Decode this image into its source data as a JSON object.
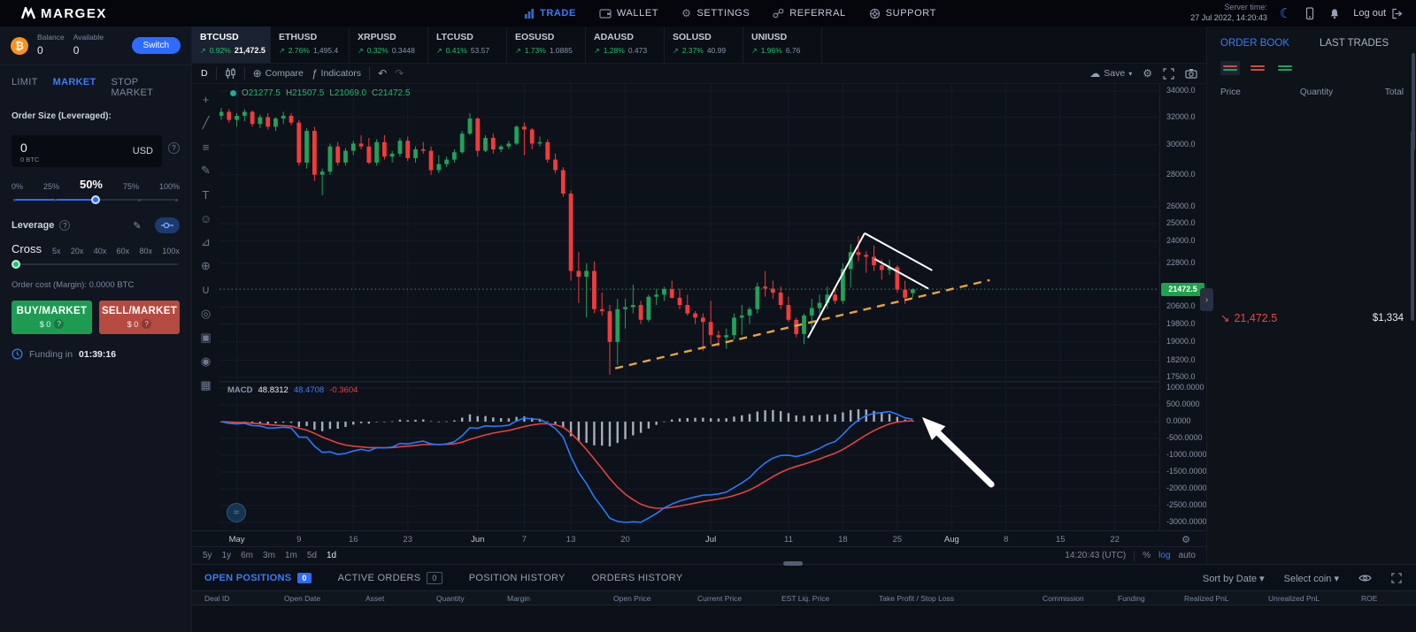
{
  "nav": {
    "brand": "MARGEX",
    "items": [
      {
        "label": "TRADE",
        "active": true
      },
      {
        "label": "WALLET"
      },
      {
        "label": "SETTINGS"
      },
      {
        "label": "REFERRAL"
      },
      {
        "label": "SUPPORT"
      }
    ],
    "server_time_label": "Server time:",
    "server_time": "27 Jul 2022, 14:20:43",
    "logout": "Log out"
  },
  "account": {
    "balance_label": "Balance",
    "balance": "0",
    "available_label": "Available",
    "available": "0",
    "switch_label": "Switch"
  },
  "order_form": {
    "tabs": [
      "LIMIT",
      "MARKET",
      "STOP MARKET"
    ],
    "active_tab": "MARKET",
    "size_label": "Order Size (Leveraged):",
    "size_value": "0",
    "size_btc": "0 BTC",
    "currency": "USD",
    "slider_labels": [
      "0%",
      "25%",
      "50%",
      "75%",
      "100%"
    ],
    "slider_value": "50%",
    "leverage_label": "Leverage",
    "margin_mode": "Cross",
    "leverage_options": [
      "5x",
      "20x",
      "40x",
      "60x",
      "80x",
      "100x"
    ],
    "order_cost": "Order cost (Margin): 0.0000 BTC",
    "buy_label": "BUY/MARKET",
    "buy_amount": "$ 0",
    "sell_label": "SELL/MARKET",
    "sell_amount": "$ 0",
    "funding_label": "Funding in",
    "funding_time": "01:39:16"
  },
  "tickers": [
    {
      "symbol": "BTCUSD",
      "change": "0.92%",
      "price": "21,472.5",
      "active": true
    },
    {
      "symbol": "ETHUSD",
      "change": "2.76%",
      "price": "1,495.4"
    },
    {
      "symbol": "XRPUSD",
      "change": "0.32%",
      "price": "0.3448"
    },
    {
      "symbol": "LTCUSD",
      "change": "0.41%",
      "price": "53.57"
    },
    {
      "symbol": "EOSUSD",
      "change": "1.73%",
      "price": "1.0885"
    },
    {
      "symbol": "ADAUSD",
      "change": "1.28%",
      "price": "0.473"
    },
    {
      "symbol": "SOLUSD",
      "change": "2.37%",
      "price": "40.99"
    },
    {
      "symbol": "UNIUSD",
      "change": "1.96%",
      "price": "6.76"
    }
  ],
  "chart": {
    "toolbar": {
      "interval": "D",
      "compare": "Compare",
      "indicators": "Indicators",
      "save": "Save"
    },
    "legend": {
      "o_label": "O",
      "o": "21277.5",
      "h_label": "H",
      "h": "21507.5",
      "l_label": "L",
      "l": "21069.0",
      "c_label": "C",
      "c": "21472.5"
    },
    "macd_legend": {
      "name": "MACD",
      "hist": "48.8312",
      "macd": "48.4708",
      "signal": "-0.3604"
    },
    "price_badge": "21472.5",
    "draw_tools": [
      {
        "name": "crosshair",
        "glyph": "+"
      },
      {
        "name": "trend-line",
        "glyph": "╱"
      },
      {
        "name": "fib-retracement",
        "glyph": "≡"
      },
      {
        "name": "brush",
        "glyph": "✎"
      },
      {
        "name": "text-tool",
        "glyph": "T"
      },
      {
        "name": "emoji",
        "glyph": "☺"
      },
      {
        "name": "measure",
        "glyph": "⊿"
      },
      {
        "name": "zoom-in",
        "glyph": "⊕"
      },
      {
        "name": "magnet",
        "glyph": "∪"
      },
      {
        "name": "drawing-mode",
        "glyph": "◎"
      },
      {
        "name": "lock-drawings",
        "glyph": "▣"
      },
      {
        "name": "hide-drawings",
        "glyph": "◉"
      },
      {
        "name": "remove-drawings",
        "glyph": "▦"
      }
    ],
    "timeframes": [
      "5y",
      "1y",
      "6m",
      "3m",
      "1m",
      "5d",
      "1d"
    ],
    "active_timeframe": "1d",
    "clock": "14:20:43 (UTC)",
    "percent_label": "%",
    "log_label": "log",
    "auto_label": "auto"
  },
  "order_book": {
    "tabs": [
      "ORDER BOOK",
      "LAST TRADES"
    ],
    "active_tab": "ORDER BOOK",
    "columns": [
      "Price",
      "Quantity",
      "Total"
    ],
    "last_price": "21,472.5",
    "last_total": "$1,334"
  },
  "positions": {
    "tabs": [
      {
        "label": "OPEN POSITIONS",
        "badge": "0",
        "badge_style": "filled",
        "active": true
      },
      {
        "label": "ACTIVE ORDERS",
        "badge": "0",
        "badge_style": "outline"
      },
      {
        "label": "POSITION HISTORY"
      },
      {
        "label": "ORDERS HISTORY"
      }
    ],
    "sort_label": "Sort by Date",
    "coin_label": "Select coin",
    "columns": [
      "Deal ID",
      "Open Date",
      "Asset",
      "Quantity",
      "Margin",
      "Open Price",
      "Current Price",
      "EST Liq. Price",
      "Take Profit / Stop Loss",
      "Commission",
      "Funding",
      "Realized PnL",
      "Unrealized PnL",
      "ROE"
    ]
  },
  "chart_data": {
    "type": "candlestick",
    "symbol": "BTCUSD",
    "interval": "1D",
    "scale": "log",
    "grid": true,
    "current_price": 21472.5,
    "last_candle": {
      "o": 21277.5,
      "h": 21507.5,
      "l": 21069.0,
      "c": 21472.5
    },
    "price_ticks": [
      {
        "label": "34000.0",
        "v": 34000
      },
      {
        "label": "32000.0",
        "v": 32000
      },
      {
        "label": "30000.0",
        "v": 30000
      },
      {
        "label": "28000.0",
        "v": 28000
      },
      {
        "label": "26000.0",
        "v": 26000
      },
      {
        "label": "25000.0",
        "v": 25000
      },
      {
        "label": "24000.0",
        "v": 24000
      },
      {
        "label": "22800.0",
        "v": 22800
      },
      {
        "label": "20600.0",
        "v": 20600
      },
      {
        "label": "19800.0",
        "v": 19800
      },
      {
        "label": "19000.0",
        "v": 19000
      },
      {
        "label": "18200.0",
        "v": 18200
      },
      {
        "label": "17500.0",
        "v": 17500
      }
    ],
    "macd_ticks": [
      {
        "label": "1000.0000",
        "v": 1000
      },
      {
        "label": "500.0000",
        "v": 500
      },
      {
        "label": "0.0000",
        "v": 0
      },
      {
        "label": "-500.0000",
        "v": -500
      },
      {
        "label": "-1000.0000",
        "v": -1000
      },
      {
        "label": "-1500.0000",
        "v": -1500
      },
      {
        "label": "-2000.0000",
        "v": -2000
      },
      {
        "label": "-2500.0000",
        "v": -2500
      },
      {
        "label": "-3000.0000",
        "v": -3000
      }
    ],
    "time_ticks": [
      {
        "label": "May",
        "i": 2,
        "major": true
      },
      {
        "label": "9",
        "i": 10
      },
      {
        "label": "16",
        "i": 17
      },
      {
        "label": "23",
        "i": 24
      },
      {
        "label": "Jun",
        "i": 33,
        "major": true
      },
      {
        "label": "7",
        "i": 39
      },
      {
        "label": "13",
        "i": 45
      },
      {
        "label": "20",
        "i": 52
      },
      {
        "label": "Jul",
        "i": 63,
        "major": true
      },
      {
        "label": "11",
        "i": 73
      },
      {
        "label": "18",
        "i": 80
      },
      {
        "label": "25",
        "i": 87
      },
      {
        "label": "Aug",
        "i": 94,
        "major": true
      },
      {
        "label": "8",
        "i": 101
      },
      {
        "label": "15",
        "i": 108
      },
      {
        "label": "22",
        "i": 115
      }
    ],
    "candles": [
      [
        32100,
        32700,
        31800,
        32400
      ],
      [
        32400,
        32600,
        31600,
        31800
      ],
      [
        31800,
        32300,
        31300,
        32100
      ],
      [
        32100,
        32600,
        31700,
        32400
      ],
      [
        32400,
        32500,
        31300,
        31500
      ],
      [
        31500,
        32200,
        31200,
        32000
      ],
      [
        32000,
        32300,
        31100,
        31300
      ],
      [
        31300,
        32000,
        31000,
        31900
      ],
      [
        31900,
        32400,
        31500,
        32100
      ],
      [
        32100,
        32300,
        31400,
        31600
      ],
      [
        31600,
        31800,
        28600,
        28800
      ],
      [
        28800,
        31200,
        28400,
        31000
      ],
      [
        31000,
        31300,
        27600,
        28000
      ],
      [
        28000,
        28400,
        26700,
        28200
      ],
      [
        28200,
        30100,
        28000,
        29900
      ],
      [
        29900,
        30200,
        28600,
        28800
      ],
      [
        28800,
        29800,
        28600,
        29600
      ],
      [
        29600,
        30300,
        29300,
        30100
      ],
      [
        30100,
        30700,
        29700,
        29900
      ],
      [
        29900,
        30500,
        28700,
        28800
      ],
      [
        28800,
        30400,
        28600,
        30200
      ],
      [
        30200,
        30700,
        29000,
        29200
      ],
      [
        29200,
        29600,
        28800,
        29400
      ],
      [
        29400,
        30500,
        29200,
        30300
      ],
      [
        30300,
        30600,
        28900,
        29100
      ],
      [
        29100,
        29900,
        28800,
        29700
      ],
      [
        29700,
        30200,
        29400,
        29600
      ],
      [
        29600,
        29900,
        28000,
        28300
      ],
      [
        28300,
        29300,
        28100,
        28700
      ],
      [
        28700,
        29200,
        28500,
        29000
      ],
      [
        29000,
        29700,
        28800,
        29500
      ],
      [
        29500,
        31000,
        29400,
        30800
      ],
      [
        30800,
        32300,
        30700,
        31900
      ],
      [
        31900,
        32000,
        29200,
        29600
      ],
      [
        29600,
        30700,
        29500,
        30500
      ],
      [
        30500,
        30800,
        29400,
        29700
      ],
      [
        29700,
        30000,
        29500,
        29900
      ],
      [
        29900,
        30300,
        29700,
        30100
      ],
      [
        30100,
        31400,
        30000,
        31300
      ],
      [
        31300,
        31600,
        29300,
        31100
      ],
      [
        31100,
        31200,
        29700,
        30100
      ],
      [
        30100,
        30600,
        29900,
        30200
      ],
      [
        30200,
        30400,
        28800,
        29000
      ],
      [
        29000,
        29400,
        28100,
        28300
      ],
      [
        28300,
        28500,
        26600,
        26800
      ],
      [
        26800,
        27000,
        21900,
        22400
      ],
      [
        22400,
        23400,
        20800,
        22100
      ],
      [
        22100,
        22800,
        20100,
        22400
      ],
      [
        22400,
        22900,
        20300,
        20500
      ],
      [
        20500,
        21300,
        20200,
        20400
      ],
      [
        20400,
        20700,
        17600,
        19000
      ],
      [
        19000,
        21000,
        18000,
        20500
      ],
      [
        20500,
        21000,
        19600,
        20600
      ],
      [
        20600,
        21700,
        20300,
        20700
      ],
      [
        20700,
        20900,
        19800,
        20000
      ],
      [
        20000,
        21200,
        19900,
        21100
      ],
      [
        21100,
        21500,
        20700,
        21200
      ],
      [
        21200,
        21600,
        20900,
        21480
      ],
      [
        21480,
        21900,
        21000,
        21050
      ],
      [
        21050,
        21500,
        20500,
        20700
      ],
      [
        20700,
        21200,
        20200,
        20300
      ],
      [
        20300,
        20400,
        19800,
        20100
      ],
      [
        20100,
        20300,
        18600,
        19900
      ],
      [
        19900,
        20900,
        18900,
        19300
      ],
      [
        19300,
        19500,
        18800,
        19200
      ],
      [
        19200,
        19600,
        18700,
        19300
      ],
      [
        19300,
        20300,
        19100,
        20100
      ],
      [
        20100,
        20700,
        19300,
        20200
      ],
      [
        20200,
        20600,
        19800,
        20500
      ],
      [
        20500,
        21800,
        20300,
        21600
      ],
      [
        21600,
        22400,
        21100,
        21500
      ],
      [
        21500,
        21900,
        21000,
        21300
      ],
      [
        21300,
        21600,
        20500,
        20700
      ],
      [
        20700,
        21100,
        19900,
        20000
      ],
      [
        20000,
        20100,
        19200,
        19350
      ],
      [
        19350,
        20300,
        18900,
        20200
      ],
      [
        20200,
        21000,
        19600,
        20550
      ],
      [
        20550,
        21200,
        20300,
        20800
      ],
      [
        20800,
        21600,
        20500,
        21200
      ],
      [
        21200,
        21600,
        20750,
        20900
      ],
      [
        20900,
        22800,
        20750,
        22500
      ],
      [
        22500,
        23850,
        21550,
        23400
      ],
      [
        23400,
        24300,
        22900,
        23250
      ],
      [
        23250,
        23450,
        22300,
        23150
      ],
      [
        23150,
        23750,
        22400,
        22700
      ],
      [
        22700,
        23000,
        21950,
        22450
      ],
      [
        22450,
        22990,
        22200,
        22600
      ],
      [
        22600,
        22700,
        21300,
        21450
      ],
      [
        21450,
        21900,
        20750,
        21050
      ],
      [
        21277.5,
        21507.5,
        21069.0,
        21472.5
      ]
    ],
    "macd_params": [
      12,
      26,
      9
    ],
    "annotations": {
      "pennant_lines": [
        [
          75.5,
          19180,
          82.8,
          24450
        ],
        [
          82.8,
          24450,
          91.5,
          22430
        ],
        [
          84.1,
          23030,
          91.0,
          21500
        ]
      ],
      "trendline_dashed": [
        50.7,
        17870,
        98.9,
        21930
      ],
      "macd_arrow": {
        "tip": [
          90.2,
          131
        ],
        "tail": [
          99.1,
          -1868
        ]
      }
    },
    "colors": {
      "up": "#21a15a",
      "down": "#f23b3b",
      "macd_line": "#2979ff",
      "signal_line": "#e8413d",
      "hist": "#c9d1df",
      "trendline": "#e8a33d",
      "current_price_line": "#2e8f67",
      "price_badge": "#1fa24d",
      "grid": "#151c29"
    }
  }
}
